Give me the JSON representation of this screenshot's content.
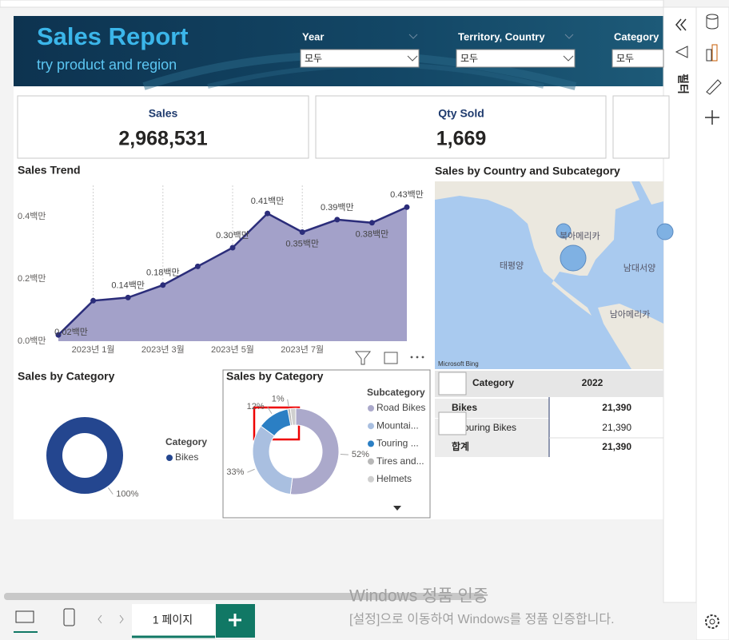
{
  "header": {
    "title": "Sales Report",
    "subtitle": "try product and region"
  },
  "filters": [
    {
      "label": "Year",
      "value": "모두"
    },
    {
      "label": "Territory, Country",
      "value": "모두"
    },
    {
      "label": "Category",
      "value": "모두"
    }
  ],
  "kpis": [
    {
      "label": "Sales",
      "value": "2,968,531"
    },
    {
      "label": "Qty Sold",
      "value": "1,669"
    }
  ],
  "chart_data": [
    {
      "type": "line",
      "title": "Sales Trend",
      "categories": [
        null,
        "2023년 1월",
        null,
        "2023년 3월",
        null,
        "2023년 5월",
        null,
        "2023년 7월",
        null,
        null,
        null
      ],
      "values": [
        0.02,
        0.13,
        0.14,
        0.18,
        0.24,
        0.3,
        0.41,
        0.35,
        0.39,
        0.38,
        0.43
      ],
      "value_labels": [
        "0.02백만",
        null,
        "0.14백만",
        "0.18백만",
        null,
        "0.30백만",
        "0.41백만",
        "0.35백만",
        "0.39백만",
        "0.38백만",
        "0.43백만"
      ],
      "color": "#2b2d7a",
      "fill": "#a3a1c9",
      "ylim": [
        0,
        0.5
      ],
      "yticks": [
        {
          "value": 0,
          "label": "0.0백만"
        },
        {
          "value": 0.2,
          "label": "0.2백만"
        },
        {
          "value": 0.4,
          "label": "0.4백만"
        }
      ],
      "grid": true
    },
    {
      "type": "pie",
      "title": "Sales by Category",
      "legend_title": "Category",
      "categories": [
        "Bikes"
      ],
      "values": [
        100
      ],
      "value_labels": [
        "100%"
      ],
      "colors": [
        "#24468f"
      ]
    },
    {
      "type": "pie",
      "title": "Sales by Category",
      "legend_title": "Subcategory",
      "categories": [
        "Road Bikes",
        "Mountai...",
        "Touring ...",
        "Tires and...",
        "Helmets"
      ],
      "values": [
        52,
        33,
        12,
        1,
        2
      ],
      "value_labels": [
        "52%",
        "33%",
        "12%",
        "1%",
        null
      ],
      "colors": [
        "#aba9cb",
        "#a9bfe0",
        "#2b7fc4",
        "#b8b8b8",
        "#cfcfcf"
      ]
    }
  ],
  "map": {
    "title": "Sales by Country and Subcategory",
    "labels": [
      "북아메리카",
      "태평양",
      "남대서양",
      "남아메리카"
    ],
    "attribution": "Microsoft Bing"
  },
  "table": {
    "header": [
      "Category",
      "2022"
    ],
    "rows": [
      [
        "Bikes",
        "21,390"
      ],
      [
        "Touring Bikes",
        "21,390"
      ],
      [
        "합계",
        "21,390"
      ]
    ]
  },
  "pages": {
    "tab": "1 페이지"
  },
  "filter_pane": "필터",
  "watermark": {
    "title": "Windows 정품 인증",
    "subtitle": "[설정]으로 이동하여 Windows를 정품 인증합니다."
  }
}
